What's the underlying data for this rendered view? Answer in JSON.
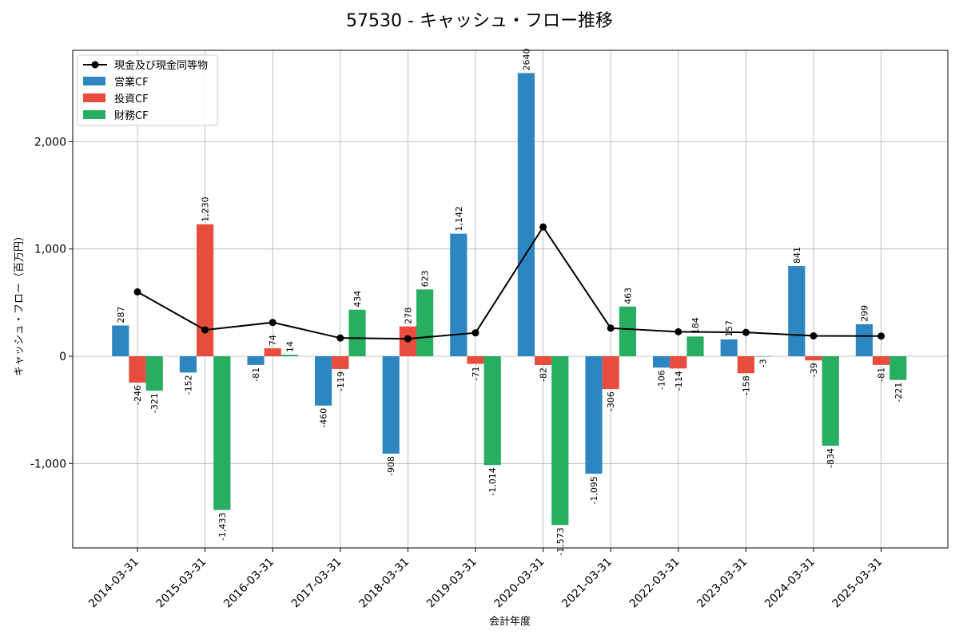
{
  "chart_data": {
    "type": "bar",
    "title": "57530 - キャッシュ・フロー推移",
    "xlabel": "会計年度",
    "ylabel": "キャッシュ・フロー（百万円）",
    "ylim": [
      -1800,
      2800
    ],
    "yticks": [
      -1000,
      0,
      1000,
      2000
    ],
    "ytick_labels": [
      "-1,000",
      "0",
      "1,000",
      "2,000"
    ],
    "grid": true,
    "legend_position": "top-left",
    "categories": [
      "2014-03-31",
      "2015-03-31",
      "2016-03-31",
      "2017-03-31",
      "2018-03-31",
      "2019-03-31",
      "2020-03-31",
      "2021-03-31",
      "2022-03-31",
      "2023-03-31",
      "2024-03-31",
      "2025-03-31"
    ],
    "series": [
      {
        "name": "営業CF",
        "kind": "bar",
        "color": "#2e86c1",
        "values": [
          287,
          -152,
          -81,
          -460,
          -908,
          1142,
          2640,
          -1095,
          -106,
          157,
          841,
          299
        ],
        "labels": [
          "287",
          "-152",
          "-81",
          "-460",
          "-908",
          "1,142",
          "2640",
          "-1,095",
          "-106",
          "157",
          "841",
          "299"
        ]
      },
      {
        "name": "投資CF",
        "kind": "bar",
        "color": "#e74c3c",
        "values": [
          -246,
          1230,
          74,
          -119,
          278,
          -71,
          -82,
          -306,
          -114,
          -158,
          -39,
          -81
        ],
        "labels": [
          "-246",
          "1,230",
          "74",
          "-119",
          "278",
          "-71",
          "-82",
          "-306",
          "-114",
          "-158",
          "-39",
          "-81"
        ]
      },
      {
        "name": "財務CF",
        "kind": "bar",
        "color": "#27ae60",
        "values": [
          -321,
          -1433,
          14,
          434,
          623,
          -1014,
          -1573,
          463,
          184,
          -3,
          -834,
          -221
        ],
        "labels": [
          "-321",
          "-1,433",
          "14",
          "434",
          "623",
          "-1,014",
          "-1,573",
          "463",
          "184",
          "-3",
          "-834",
          "-221"
        ]
      },
      {
        "name": "現金及び現金同等物",
        "kind": "line",
        "color": "#000000",
        "values": [
          600,
          245,
          315,
          170,
          163,
          218,
          1205,
          262,
          228,
          222,
          190,
          188
        ]
      }
    ]
  }
}
